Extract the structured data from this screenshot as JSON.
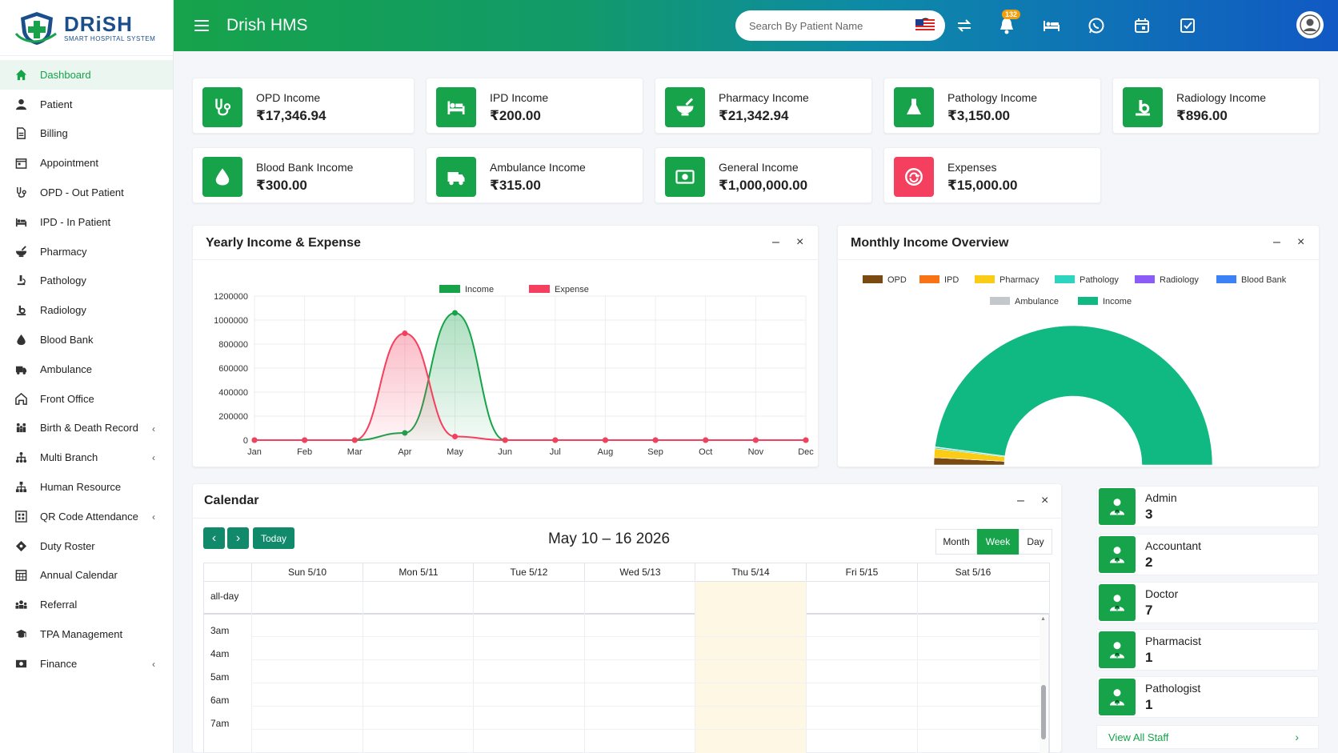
{
  "brand": {
    "name": "DRiSH",
    "subtitle": "SMART HOSPITAL SYSTEM"
  },
  "header": {
    "title": "Drish HMS",
    "search_placeholder": "Search By Patient Name",
    "notification_count": "132"
  },
  "sidebar": {
    "items": [
      {
        "label": "Dashboard",
        "icon": "home-icon"
      },
      {
        "label": "Patient",
        "icon": "user-icon"
      },
      {
        "label": "Billing",
        "icon": "billing-icon"
      },
      {
        "label": "Appointment",
        "icon": "calendar-icon"
      },
      {
        "label": "OPD - Out Patient",
        "icon": "stethoscope-icon"
      },
      {
        "label": "IPD - In Patient",
        "icon": "bed-icon"
      },
      {
        "label": "Pharmacy",
        "icon": "mortar-icon"
      },
      {
        "label": "Pathology",
        "icon": "microscope-icon"
      },
      {
        "label": "Radiology",
        "icon": "radiology-icon"
      },
      {
        "label": "Blood Bank",
        "icon": "drop-icon"
      },
      {
        "label": "Ambulance",
        "icon": "ambulance-icon"
      },
      {
        "label": "Front Office",
        "icon": "office-icon"
      },
      {
        "label": "Birth & Death Record",
        "icon": "family-icon"
      },
      {
        "label": "Multi Branch",
        "icon": "branch-icon"
      },
      {
        "label": "Human Resource",
        "icon": "hierarchy-icon"
      },
      {
        "label": "QR Code Attendance",
        "icon": "qr-icon"
      },
      {
        "label": "Duty Roster",
        "icon": "roster-icon"
      },
      {
        "label": "Annual Calendar",
        "icon": "annual-calendar-icon"
      },
      {
        "label": "Referral",
        "icon": "referral-icon"
      },
      {
        "label": "TPA Management",
        "icon": "tpa-icon"
      },
      {
        "label": "Finance",
        "icon": "finance-icon"
      }
    ]
  },
  "stats": [
    {
      "label": "OPD Income",
      "value": "₹17,346.94",
      "icon": "stethoscope-icon"
    },
    {
      "label": "IPD Income",
      "value": "₹200.00",
      "icon": "bed-icon"
    },
    {
      "label": "Pharmacy Income",
      "value": "₹21,342.94",
      "icon": "mortar-icon"
    },
    {
      "label": "Pathology Income",
      "value": "₹3,150.00",
      "icon": "flask-icon"
    },
    {
      "label": "Radiology Income",
      "value": "₹896.00",
      "icon": "radiology-icon"
    },
    {
      "label": "Blood Bank Income",
      "value": "₹300.00",
      "icon": "drop-icon"
    },
    {
      "label": "Ambulance Income",
      "value": "₹315.00",
      "icon": "ambulance-icon"
    },
    {
      "label": "General Income",
      "value": "₹1,000,000.00",
      "icon": "money-icon"
    },
    {
      "label": "Expenses",
      "value": "₹15,000.00",
      "icon": "expense-icon"
    }
  ],
  "yearly_panel": {
    "title": "Yearly Income & Expense",
    "minimize": "–",
    "close": "×"
  },
  "monthly_panel": {
    "title": "Monthly Income Overview",
    "minimize": "–",
    "close": "×"
  },
  "chart_data": [
    {
      "type": "line",
      "categories": [
        "Jan",
        "Feb",
        "Mar",
        "Apr",
        "May",
        "Jun",
        "Jul",
        "Aug",
        "Sep",
        "Oct",
        "Nov",
        "Dec"
      ],
      "series": [
        {
          "name": "Income",
          "color": "#16a34a",
          "values": [
            0,
            0,
            0,
            60000,
            1060000,
            0,
            0,
            0,
            0,
            0,
            0,
            0
          ]
        },
        {
          "name": "Expense",
          "color": "#f43f5e",
          "values": [
            0,
            0,
            0,
            890000,
            30000,
            0,
            0,
            0,
            0,
            0,
            0,
            0
          ]
        }
      ],
      "yticks": [
        "0",
        "200000",
        "400000",
        "600000",
        "800000",
        "1000000",
        "1200000"
      ],
      "ylim": [
        0,
        1200000
      ],
      "legend": "top"
    },
    {
      "type": "pie",
      "variant": "half-doughnut",
      "labels": [
        "OPD",
        "IPD",
        "Pharmacy",
        "Pathology",
        "Radiology",
        "Blood Bank",
        "Ambulance",
        "Income"
      ],
      "colors": [
        "#7a4a12",
        "#f97316",
        "#facc15",
        "#2dd4bf",
        "#8b5cf6",
        "#3b82f6",
        "#c4c7cc",
        "#10b981"
      ],
      "values": [
        17346.94,
        200,
        21342.94,
        3150,
        896,
        300,
        315,
        1000000
      ],
      "legend": "top"
    }
  ],
  "calendar": {
    "title": "Calendar",
    "minimize": "–",
    "close": "×",
    "prev": "‹",
    "next": "›",
    "today": "Today",
    "range": "May 10 – 16 2026",
    "views": [
      "Month",
      "Week",
      "Day"
    ],
    "days": [
      "Sun 5/10",
      "Mon 5/11",
      "Tue 5/12",
      "Wed 5/13",
      "Thu 5/14",
      "Fri 5/15",
      "Sat 5/16"
    ],
    "all_day": "all-day",
    "times": [
      "3am",
      "4am",
      "5am",
      "6am",
      "7am"
    ]
  },
  "staff": [
    {
      "role": "Admin",
      "count": "3"
    },
    {
      "role": "Accountant",
      "count": "2"
    },
    {
      "role": "Doctor",
      "count": "7"
    },
    {
      "role": "Pharmacist",
      "count": "1"
    },
    {
      "role": "Pathologist",
      "count": "1"
    }
  ],
  "view_all_staff": "View All Staff"
}
